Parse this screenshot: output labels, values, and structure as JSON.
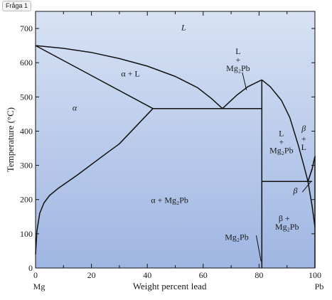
{
  "badge": "Fråga 1",
  "chart_data": {
    "type": "phase-diagram",
    "xlabel": "Weight percent lead",
    "ylabel": "Temperature (°C)",
    "xlim": [
      0,
      100
    ],
    "ylim": [
      0,
      750
    ],
    "x_ticks": [
      0,
      20,
      40,
      60,
      80,
      100
    ],
    "y_ticks": [
      0,
      100,
      200,
      300,
      400,
      500,
      600,
      700
    ],
    "x_end_labels": {
      "left": "Mg",
      "right": "Pb"
    },
    "regions": [
      {
        "label": "L",
        "x": 53,
        "y": 695
      },
      {
        "label": "α + L",
        "x": 34,
        "y": 560
      },
      {
        "label": "α",
        "x": 14,
        "y": 460
      },
      {
        "label": "α + Mg₂Pb",
        "x": 48,
        "y": 190
      },
      {
        "label": "β",
        "x": 93,
        "y": 218
      },
      {
        "label": "β",
        "x": 96,
        "y": 400
      },
      {
        "label": "β +",
        "x": 89,
        "y": 137
      },
      {
        "label": "Mg₂Pb",
        "x": 90,
        "y": 112
      }
    ],
    "liquid_mg2pb_label": {
      "lines": [
        "L",
        "+",
        "Mg₂Pb"
      ],
      "x": 72.5,
      "y": 625
    },
    "l_mg2pb_label": {
      "lines": [
        "L",
        "+",
        "Mg₂Pb"
      ],
      "x": 88,
      "y": 385
    },
    "beta_l_label": {
      "lines": [
        "+",
        "L"
      ],
      "x": 96,
      "y": 370
    },
    "mg2pb_callout": {
      "label": "Mg₂Pb",
      "x": 72,
      "y": 82
    },
    "lines": {
      "liquidus_left": [
        [
          0,
          650
        ],
        [
          10,
          642
        ],
        [
          20,
          630
        ],
        [
          30,
          612
        ],
        [
          40,
          590
        ],
        [
          50,
          560
        ],
        [
          58,
          527
        ],
        [
          63,
          495
        ],
        [
          66.9,
          466
        ]
      ],
      "solidus_left": [
        [
          0,
          650
        ],
        [
          42,
          466
        ]
      ],
      "alpha_solvus": [
        [
          0,
          40
        ],
        [
          0.5,
          110
        ],
        [
          1.5,
          160
        ],
        [
          3,
          190
        ],
        [
          5,
          212
        ],
        [
          8,
          232
        ],
        [
          15,
          272
        ],
        [
          25,
          333
        ],
        [
          30,
          363
        ],
        [
          42,
          466
        ]
      ],
      "liquidus_mg2pb_left": [
        [
          66.9,
          466
        ],
        [
          72,
          505
        ],
        [
          76,
          530
        ],
        [
          81,
          550
        ]
      ],
      "liquidus_mg2pb_right": [
        [
          81,
          550
        ],
        [
          84,
          530
        ],
        [
          88,
          490
        ],
        [
          91,
          440
        ],
        [
          94,
          360
        ],
        [
          96,
          300
        ],
        [
          97.5,
          253
        ]
      ],
      "liquidus_pb": [
        [
          97.5,
          253
        ],
        [
          99,
          290
        ],
        [
          100,
          327
        ]
      ],
      "beta_solidus": [
        [
          97.5,
          253
        ],
        [
          99,
          290
        ]
      ],
      "beta_solvus": [
        [
          97.5,
          253
        ],
        [
          99,
          180
        ],
        [
          100,
          120
        ]
      ],
      "eutectic_1": [
        [
          42,
          466
        ],
        [
          81,
          466
        ]
      ],
      "eutectic_2": [
        [
          81,
          253
        ],
        [
          99,
          253
        ]
      ],
      "mg2pb_compound": [
        [
          81,
          0
        ],
        [
          81,
          550
        ]
      ],
      "right_edge": [
        [
          100,
          0
        ],
        [
          100,
          327
        ]
      ]
    },
    "leader_lines": [
      {
        "from": [
          74,
          572
        ],
        "to": [
          75.5,
          520
        ]
      },
      {
        "from": [
          79,
          95
        ],
        "to": [
          80.7,
          20
        ]
      },
      {
        "from": [
          95.5,
          222
        ],
        "to": [
          98.5,
          252
        ]
      }
    ]
  }
}
